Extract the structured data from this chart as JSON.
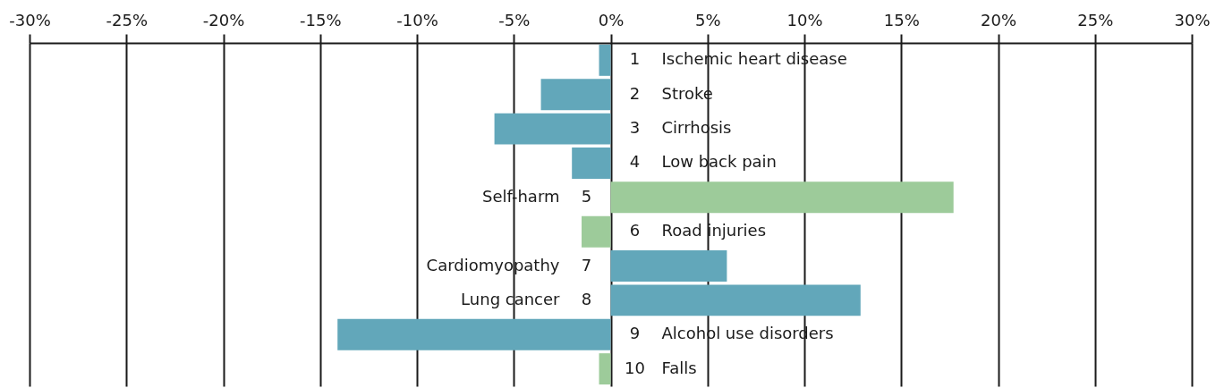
{
  "chart_data": {
    "type": "bar",
    "orientation": "horizontal",
    "categories": [
      "1 Ischemic heart disease",
      "2 Stroke",
      "3 Cirrhosis",
      "4 Low back pain",
      "Self-harm 5",
      "6 Road injuries",
      "Cardiomyopathy 7",
      "Lung cancer 8",
      "9 Alcohol use disorders",
      "10 Falls"
    ],
    "values": [
      -0.6,
      -3.6,
      -6.0,
      -2.0,
      17.7,
      -1.5,
      6.0,
      12.9,
      -14.1,
      -0.6
    ],
    "colors": [
      "#62a7ba",
      "#62a7ba",
      "#62a7ba",
      "#62a7ba",
      "#9dcb9a",
      "#9dcb9a",
      "#62a7ba",
      "#62a7ba",
      "#62a7ba",
      "#9dcb9a"
    ],
    "xlim": [
      -30,
      30
    ],
    "xticks": [
      {
        "value": -30,
        "label": "-30%"
      },
      {
        "value": -25,
        "label": "-25%"
      },
      {
        "value": -20,
        "label": "-20%"
      },
      {
        "value": -15,
        "label": "-15%"
      },
      {
        "value": -10,
        "label": "-10%"
      },
      {
        "value": -5,
        "label": "-5%"
      },
      {
        "value": 0,
        "label": "0%"
      },
      {
        "value": 5,
        "label": "5%"
      },
      {
        "value": 10,
        "label": "10%"
      },
      {
        "value": 15,
        "label": "15%"
      },
      {
        "value": 20,
        "label": "20%"
      },
      {
        "value": 25,
        "label": "25%"
      },
      {
        "value": 30,
        "label": "30%"
      }
    ],
    "grid": "x"
  }
}
